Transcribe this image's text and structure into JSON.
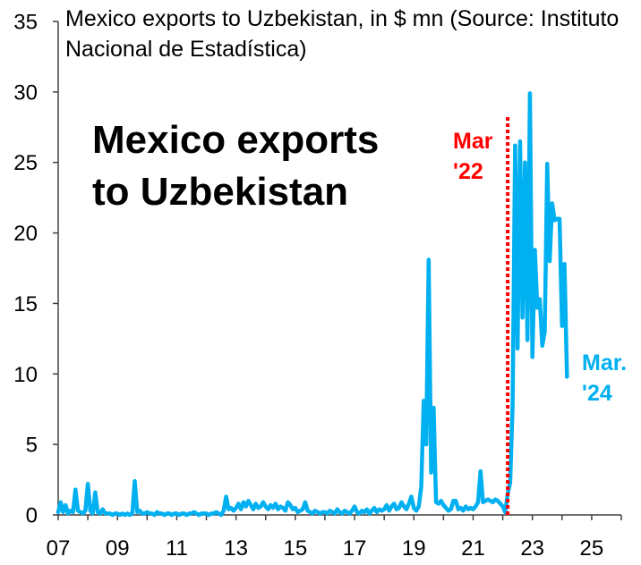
{
  "chart_data": {
    "type": "line",
    "title": "Mexico exports to Uzbekistan, in $ mn (Source: Instituto Nacional de Estadística)",
    "annotation": "Mexico exports to Uzbekistan",
    "xlabel": "",
    "ylabel": "",
    "xlim": [
      2007,
      2026
    ],
    "ylim": [
      0,
      35
    ],
    "grid": false,
    "yticks": [
      0,
      5,
      10,
      15,
      20,
      25,
      30,
      35
    ],
    "xticks": [
      {
        "year": 2007,
        "label": "07"
      },
      {
        "year": 2009,
        "label": "09"
      },
      {
        "year": 2011,
        "label": "11"
      },
      {
        "year": 2013,
        "label": "13"
      },
      {
        "year": 2015,
        "label": "15"
      },
      {
        "year": 2017,
        "label": "17"
      },
      {
        "year": 2019,
        "label": "19"
      },
      {
        "year": 2021,
        "label": "21"
      },
      {
        "year": 2023,
        "label": "23"
      },
      {
        "year": 2025,
        "label": "25"
      }
    ],
    "x_start": 2007.0,
    "x_step": 0.0833333,
    "series": [
      {
        "color": "#00B0F0",
        "values": [
          0.2,
          0.9,
          0.2,
          0.7,
          0.1,
          0.3,
          0.2,
          1.8,
          0.3,
          0.2,
          0.1,
          0.3,
          2.2,
          0.3,
          0.1,
          1.6,
          0.2,
          0.1,
          0.4,
          0.1,
          0.1,
          0.1,
          0.0,
          0.1,
          0.1,
          0.0,
          0.1,
          0.0,
          0.1,
          0.0,
          0.1,
          2.4,
          0.2,
          0.3,
          0.1,
          0.1,
          0.2,
          0.1,
          0.1,
          0.0,
          0.2,
          0.1,
          0.1,
          0.0,
          0.1,
          0.1,
          0.0,
          0.1,
          0.1,
          0.0,
          0.1,
          0.1,
          0.0,
          0.1,
          0.1,
          0.2,
          0.1,
          0.0,
          0.1,
          0.1,
          0.1,
          0.0,
          0.1,
          0.1,
          0.2,
          0.1,
          0.0,
          0.3,
          1.3,
          0.4,
          0.5,
          0.3,
          0.5,
          0.8,
          0.4,
          0.9,
          0.6,
          1.0,
          0.7,
          0.4,
          0.8,
          0.5,
          0.6,
          0.9,
          0.6,
          0.4,
          0.7,
          0.5,
          0.8,
          0.4,
          0.6,
          0.5,
          0.3,
          0.9,
          0.7,
          0.4,
          0.5,
          0.2,
          0.3,
          0.4,
          0.9,
          0.3,
          0.2,
          0.1,
          0.3,
          0.2,
          0.1,
          0.2,
          0.2,
          0.1,
          0.3,
          0.2,
          0.1,
          0.4,
          0.2,
          0.1,
          0.3,
          0.2,
          0.1,
          0.3,
          0.6,
          0.2,
          0.1,
          0.3,
          0.2,
          0.4,
          0.1,
          0.3,
          0.5,
          0.2,
          0.4,
          0.3,
          0.4,
          0.7,
          0.3,
          0.6,
          0.8,
          0.4,
          0.5,
          0.9,
          0.6,
          0.4,
          0.8,
          1.3,
          0.5,
          0.3,
          0.6,
          2.0,
          8.1,
          5.0,
          18.1,
          3.0,
          7.6,
          0.9,
          0.8,
          1.0,
          0.7,
          0.5,
          0.3,
          0.4,
          1.0,
          1.0,
          0.4,
          0.5,
          0.3,
          0.6,
          0.4,
          0.5,
          0.4,
          0.6,
          0.9,
          3.1,
          0.9,
          1.0,
          1.1,
          1.0,
          0.9,
          1.1,
          1.0,
          0.8,
          0.6,
          0.2,
          1.5,
          2.3,
          7.8,
          26.2,
          11.8,
          26.5,
          14.0,
          25.0,
          12.4,
          29.9,
          11.2,
          18.8,
          14.7,
          15.3,
          12.0,
          13.0,
          24.9,
          18.0,
          22.1,
          20.9,
          21.0,
          21.0,
          13.4,
          17.8,
          9.8
        ]
      }
    ],
    "event_line": {
      "x": 2022.1667,
      "y_top": 28.4,
      "color": "#FF0000",
      "label": "Mar '22"
    },
    "end_label": "Mar. '24",
    "end_label_color": "#00B0F0",
    "axis_color": "#404040"
  }
}
